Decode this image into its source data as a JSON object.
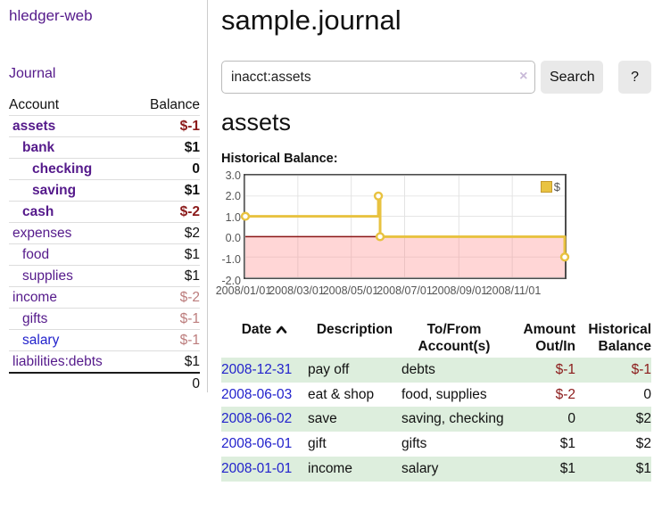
{
  "app": {
    "brand": "hledger-web",
    "nav_journal": "Journal"
  },
  "sidebar": {
    "header": {
      "account": "Account",
      "balance": "Balance"
    },
    "accounts": [
      {
        "name": "assets",
        "depth": 1,
        "balance": "$-1",
        "bold": true,
        "neg": "strong"
      },
      {
        "name": "bank",
        "depth": 2,
        "balance": "$1",
        "bold": true
      },
      {
        "name": "checking",
        "depth": 3,
        "balance": "0",
        "bold": true
      },
      {
        "name": "saving",
        "depth": 3,
        "balance": "$1",
        "bold": true
      },
      {
        "name": "cash",
        "depth": 2,
        "balance": "$-2",
        "bold": true,
        "neg": "strong"
      },
      {
        "name": "expenses",
        "depth": 1,
        "balance": "$2"
      },
      {
        "name": "food",
        "depth": 2,
        "balance": "$1"
      },
      {
        "name": "supplies",
        "depth": 2,
        "balance": "$1"
      },
      {
        "name": "income",
        "depth": 1,
        "balance": "$-2",
        "neg": "muted"
      },
      {
        "name": "gifts",
        "depth": 2,
        "balance": "$-1",
        "neg": "muted"
      },
      {
        "name": "salary",
        "depth": 2,
        "balance": "$-1",
        "neg": "muted",
        "blue": true
      },
      {
        "name": "liabilities:debts",
        "depth": 1,
        "balance": "$1"
      }
    ],
    "total": "0"
  },
  "header": {
    "title": "sample.journal"
  },
  "search": {
    "value": "inacct:assets",
    "clear_icon": "×",
    "button": "Search",
    "help": "?"
  },
  "account_page": {
    "title": "assets",
    "chart_label": "Historical Balance:"
  },
  "chart_data": {
    "type": "line",
    "title": "Historical Balance",
    "step": true,
    "series": [
      {
        "name": "$",
        "color": "#e8c240",
        "points": [
          [
            "2008-01-01",
            1
          ],
          [
            "2008-06-01",
            2
          ],
          [
            "2008-06-03",
            0
          ],
          [
            "2008-12-31",
            -1
          ]
        ]
      }
    ],
    "x_range": [
      "2008-01-01",
      "2008-12-31"
    ],
    "x_ticks": [
      "2008/01/01",
      "2008/03/01",
      "2008/05/01",
      "2008/07/01",
      "2008/09/01",
      "2008/11/01"
    ],
    "y_ticks": [
      3.0,
      2.0,
      1.0,
      0.0,
      -1.0,
      -2.0
    ],
    "ylim": [
      -2,
      3
    ],
    "grid": true,
    "negative_region_color": "rgba(255,130,130,0.33)",
    "zero_line_color": "#8b1515",
    "legend": {
      "label": "$",
      "position": "top-right"
    }
  },
  "register": {
    "columns": [
      {
        "label": "Date",
        "label2": "",
        "align": "left",
        "sortable": true
      },
      {
        "label": "Description",
        "label2": "",
        "align": "left"
      },
      {
        "label": "To/From",
        "label2": "Account(s)",
        "align": "left"
      },
      {
        "label": "Amount",
        "label2": "Out/In",
        "align": "right"
      },
      {
        "label": "Historical",
        "label2": "Balance",
        "align": "right"
      }
    ],
    "rows": [
      {
        "date": "2008-12-31",
        "description": "pay off",
        "accounts": "debts",
        "amount": "$-1",
        "amount_neg": true,
        "balance": "$-1",
        "balance_neg": true
      },
      {
        "date": "2008-06-03",
        "description": "eat & shop",
        "accounts": "food, supplies",
        "amount": "$-2",
        "amount_neg": true,
        "balance": "0",
        "balance_neg": false
      },
      {
        "date": "2008-06-02",
        "description": "save",
        "accounts": "saving, checking",
        "amount": "0",
        "amount_neg": false,
        "balance": "$2",
        "balance_neg": false
      },
      {
        "date": "2008-06-01",
        "description": "gift",
        "accounts": "gifts",
        "amount": "$1",
        "amount_neg": false,
        "balance": "$2",
        "balance_neg": false
      },
      {
        "date": "2008-01-01",
        "description": "income",
        "accounts": "salary",
        "amount": "$1",
        "amount_neg": false,
        "balance": "$1",
        "balance_neg": false
      }
    ]
  }
}
